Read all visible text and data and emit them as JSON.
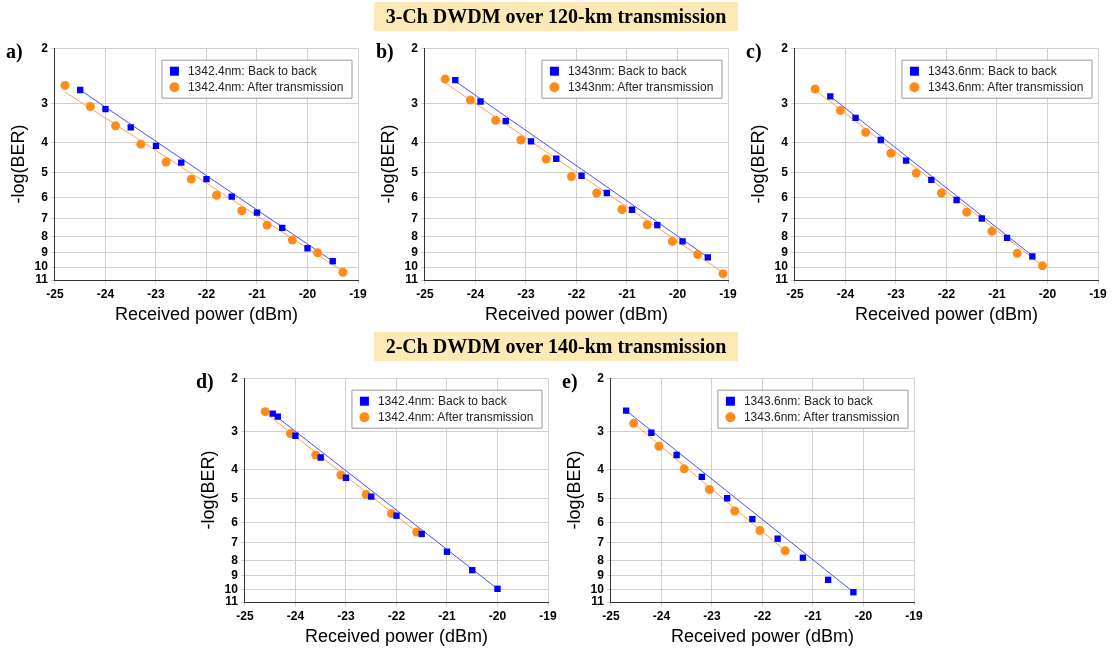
{
  "chart_data": [
    {
      "type": "scatter",
      "title": "a)",
      "annotations": [
        "3-Ch DWDM over 120-km transmission"
      ],
      "xlabel": "Received power (dBm)",
      "ylabel": "-log(BER)",
      "xlim": [
        -25,
        -19
      ],
      "xticks": [
        -25,
        -24,
        -23,
        -22,
        -21,
        -20,
        -19
      ],
      "ylim": [
        11,
        2
      ],
      "yticks": [
        2,
        3,
        4,
        5,
        6,
        7,
        8,
        9,
        10,
        11
      ],
      "log": "y",
      "grid": true,
      "legend": "top right",
      "series": [
        {
          "name": "1342.4nm: Back to back",
          "color": "#0000ff",
          "marker": "square",
          "x": [
            -24.5,
            -24,
            -23.5,
            -23,
            -22.5,
            -22,
            -21.5,
            -21,
            -20.5,
            -20,
            -19.5
          ],
          "values": [
            2.72,
            3.13,
            3.58,
            4.1,
            4.64,
            5.24,
            5.96,
            6.7,
            7.5,
            8.71,
            9.58
          ]
        },
        {
          "name": "1342.4nm: After transmission",
          "color": "#ff8c1a",
          "marker": "circle",
          "x": [
            -24.8,
            -24.3,
            -23.8,
            -23.3,
            -22.8,
            -22.3,
            -21.8,
            -21.3,
            -20.8,
            -20.3,
            -19.8,
            -19.3
          ],
          "values": [
            2.63,
            3.07,
            3.54,
            4.05,
            4.62,
            5.24,
            5.9,
            6.61,
            7.35,
            8.2,
            9.0,
            10.39
          ]
        },
        {
          "type": "line",
          "color": "#4d4dff",
          "x": [
            -24.5,
            -19.5
          ],
          "values": [
            2.72,
            9.58
          ]
        },
        {
          "type": "line",
          "color": "#ffa050",
          "x": [
            -24.8,
            -19.3
          ],
          "values": [
            2.76,
            10.3
          ]
        }
      ]
    },
    {
      "type": "scatter",
      "title": "b)",
      "xlabel": "Received power (dBm)",
      "ylabel": "-log(BER)",
      "xlim": [
        -25,
        -19
      ],
      "xticks": [
        -25,
        -24,
        -23,
        -22,
        -21,
        -20,
        -19
      ],
      "ylim": [
        11,
        2
      ],
      "yticks": [
        2,
        3,
        4,
        5,
        6,
        7,
        8,
        9,
        10,
        11
      ],
      "log": "y",
      "grid": true,
      "legend": "top right",
      "series": [
        {
          "name": "1343nm: Back to back",
          "color": "#0000ff",
          "marker": "square",
          "x": [
            -24.4,
            -23.9,
            -23.4,
            -22.9,
            -22.4,
            -21.9,
            -21.4,
            -20.9,
            -20.4,
            -19.9,
            -19.4
          ],
          "values": [
            2.53,
            2.96,
            3.42,
            3.97,
            4.51,
            5.11,
            5.8,
            6.56,
            7.35,
            8.28,
            9.31
          ]
        },
        {
          "name": "1343nm: After transmission",
          "color": "#ff8c1a",
          "marker": "circle",
          "x": [
            -24.6,
            -24.1,
            -23.6,
            -23.1,
            -22.6,
            -22.1,
            -21.6,
            -21.1,
            -20.6,
            -20.1,
            -19.6,
            -19.1
          ],
          "values": [
            2.51,
            2.93,
            3.4,
            3.93,
            4.52,
            5.14,
            5.8,
            6.55,
            7.33,
            8.28,
            9.12,
            10.5
          ]
        },
        {
          "type": "line",
          "color": "#4d4dff",
          "x": [
            -24.4,
            -19.4
          ],
          "values": [
            2.55,
            9.3
          ]
        },
        {
          "type": "line",
          "color": "#ffa050",
          "x": [
            -24.6,
            -19.1
          ],
          "values": [
            2.58,
            10.4
          ]
        }
      ]
    },
    {
      "type": "scatter",
      "title": "c)",
      "xlabel": "Received power (dBm)",
      "ylabel": "-log(BER)",
      "xlim": [
        -25,
        -19
      ],
      "xticks": [
        -25,
        -24,
        -23,
        -22,
        -21,
        -20,
        -19
      ],
      "ylim": [
        11,
        2
      ],
      "yticks": [
        2,
        3,
        4,
        5,
        6,
        7,
        8,
        9,
        10,
        11
      ],
      "log": "y",
      "grid": true,
      "legend": "top right",
      "series": [
        {
          "name": "1343.6nm: Back to back",
          "color": "#0000ff",
          "marker": "square",
          "x": [
            -24.3,
            -23.8,
            -23.3,
            -22.8,
            -22.3,
            -21.8,
            -21.3,
            -20.8,
            -20.3
          ],
          "values": [
            2.85,
            3.34,
            3.93,
            4.57,
            5.27,
            6.11,
            7.0,
            8.07,
            9.25
          ]
        },
        {
          "name": "1343.6nm: After transmission",
          "color": "#ff8c1a",
          "marker": "circle",
          "x": [
            -24.6,
            -24.1,
            -23.6,
            -23.1,
            -22.6,
            -22.1,
            -21.6,
            -21.1,
            -20.6,
            -20.1
          ],
          "values": [
            2.7,
            3.16,
            3.71,
            4.33,
            5.01,
            5.8,
            6.68,
            7.69,
            9.04,
            9.91
          ]
        },
        {
          "type": "line",
          "color": "#4d4dff",
          "x": [
            -24.3,
            -20.3
          ],
          "values": [
            2.85,
            9.2
          ]
        },
        {
          "type": "line",
          "color": "#ffa050",
          "x": [
            -24.6,
            -20.1
          ],
          "values": [
            2.72,
            9.9
          ]
        }
      ]
    },
    {
      "type": "scatter",
      "title": "d)",
      "annotations": [
        "2-Ch DWDM over 140-km transmission"
      ],
      "xlabel": "Received power (dBm)",
      "ylabel": "-log(BER)",
      "xlim": [
        -25,
        -19
      ],
      "xticks": [
        -25,
        -24,
        -23,
        -22,
        -21,
        -20,
        -19
      ],
      "ylim": [
        11,
        2
      ],
      "yticks": [
        2,
        3,
        4,
        5,
        6,
        7,
        8,
        9,
        10,
        11
      ],
      "log": "y",
      "grid": true,
      "legend": "top right",
      "series": [
        {
          "name": "1342.4nm: Back to back",
          "color": "#0000ff",
          "marker": "square",
          "x": [
            -24.45,
            -24.35,
            -24,
            -23.5,
            -23,
            -22.5,
            -22,
            -21.5,
            -21,
            -20.5,
            -20
          ],
          "values": [
            2.62,
            2.68,
            3.1,
            3.66,
            4.27,
            4.93,
            5.7,
            6.55,
            7.5,
            8.63,
            9.95
          ]
        },
        {
          "name": "1342.4nm: After transmission",
          "color": "#ff8c1a",
          "marker": "circle",
          "x": [
            -24.6,
            -24.1,
            -23.6,
            -23.1,
            -22.6,
            -22.1,
            -21.6
          ],
          "values": [
            2.58,
            3.05,
            3.59,
            4.18,
            4.85,
            5.61,
            6.46
          ]
        },
        {
          "type": "line",
          "color": "#4d4dff",
          "x": [
            -24.45,
            -20
          ],
          "values": [
            2.62,
            9.95
          ]
        },
        {
          "type": "line",
          "color": "#ffa050",
          "x": [
            -24.6,
            -21.6
          ],
          "values": [
            2.6,
            6.45
          ]
        }
      ]
    },
    {
      "type": "scatter",
      "title": "e)",
      "xlabel": "Received power (dBm)",
      "ylabel": "-log(BER)",
      "xlim": [
        -25,
        -19
      ],
      "xticks": [
        -25,
        -24,
        -23,
        -22,
        -21,
        -20,
        -19
      ],
      "ylim": [
        11,
        2
      ],
      "yticks": [
        2,
        3,
        4,
        5,
        6,
        7,
        8,
        9,
        10,
        11
      ],
      "log": "y",
      "grid": true,
      "legend": "top right",
      "series": [
        {
          "name": "1343.6nm: Back to back",
          "color": "#0000ff",
          "marker": "square",
          "x": [
            -24.7,
            -24.2,
            -23.7,
            -23.2,
            -22.7,
            -22.2,
            -21.7,
            -21.2,
            -20.7,
            -20.2
          ],
          "values": [
            2.56,
            3.03,
            3.59,
            4.24,
            4.99,
            5.85,
            6.79,
            7.85,
            9.29,
            10.21
          ]
        },
        {
          "name": "1343.6nm: After transmission",
          "color": "#ff8c1a",
          "marker": "circle",
          "x": [
            -24.55,
            -24.05,
            -23.55,
            -23.05,
            -22.55,
            -22.05,
            -21.55
          ],
          "values": [
            2.82,
            3.36,
            3.99,
            4.67,
            5.5,
            6.38,
            7.45
          ]
        },
        {
          "type": "line",
          "color": "#4d4dff",
          "x": [
            -24.7,
            -20.2
          ],
          "values": [
            2.56,
            10.2
          ]
        },
        {
          "type": "line",
          "color": "#ffa050",
          "x": [
            -24.55,
            -21.55
          ],
          "values": [
            2.82,
            7.45
          ]
        }
      ]
    }
  ]
}
